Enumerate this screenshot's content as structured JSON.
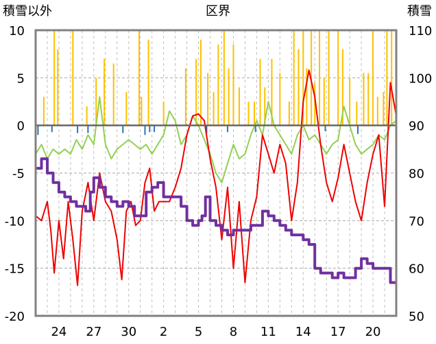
{
  "chart_data": {
    "type": "line",
    "title": "区界",
    "left_axis_label": "積雪以外",
    "right_axis_label": "積雪",
    "ylim_left": [
      -20,
      10
    ],
    "ylim_right": [
      50,
      110
    ],
    "y_ticks_left": [
      "10",
      "5",
      "0",
      "-5",
      "-10",
      "-15",
      "-20"
    ],
    "y_ticks_right": [
      "110",
      "100",
      "90",
      "80",
      "70",
      "60",
      "50"
    ],
    "x_range": [
      22,
      53
    ],
    "x_ticks": [
      {
        "x": 24,
        "label": "24"
      },
      {
        "x": 27,
        "label": "27"
      },
      {
        "x": 30,
        "label": "30"
      },
      {
        "x": 33,
        "label": "2"
      },
      {
        "x": 36,
        "label": "5"
      },
      {
        "x": 39,
        "label": "8"
      },
      {
        "x": 42,
        "label": "11"
      },
      {
        "x": 45,
        "label": "14"
      },
      {
        "x": 48,
        "label": "17"
      },
      {
        "x": 51,
        "label": "20"
      }
    ],
    "grid": {
      "horizontal": "dashed",
      "vertical_daily": "dashed"
    },
    "colors": {
      "temp_max": "#ee0000",
      "temp_min": "#92d050",
      "precipitation": "#ffc000",
      "negative_bar": "#2e75b6",
      "snow_depth": "#7030a0",
      "frame": "#808080",
      "zero_line": "#666666"
    },
    "series": [
      {
        "key": "temp_max",
        "axis": "left",
        "x": [
          22,
          22.5,
          23,
          23.3,
          23.6,
          24,
          24.4,
          24.8,
          25.2,
          25.6,
          26,
          26.5,
          27,
          27.5,
          28,
          28.5,
          29,
          29.4,
          29.8,
          30.2,
          30.6,
          31,
          31.4,
          31.8,
          32.2,
          32.6,
          33,
          33.5,
          34,
          34.5,
          35,
          35.5,
          36,
          36.5,
          37,
          37.5,
          38,
          38.5,
          39,
          39.5,
          40,
          40.5,
          41,
          41.5,
          42,
          42.5,
          43,
          43.5,
          44,
          44.5,
          45,
          45.5,
          46,
          46.5,
          47,
          47.5,
          48,
          48.5,
          49,
          49.5,
          50,
          50.5,
          51,
          51.5,
          52,
          52.5,
          53
        ],
        "y": [
          -9.5,
          -10,
          -8,
          -11,
          -15.5,
          -10,
          -14,
          -8,
          -12,
          -16.8,
          -9,
          -6,
          -10,
          -5,
          -8,
          -9,
          -12,
          -16.2,
          -9,
          -8,
          -10.5,
          -10,
          -6,
          -4.5,
          -9,
          -8,
          -8,
          -8,
          -6.5,
          -4.5,
          -1,
          1,
          1.2,
          0.5,
          -3.5,
          -6.5,
          -12,
          -6.5,
          -15,
          -8,
          -16.5,
          -10,
          -7.5,
          -1,
          -3,
          -5,
          -2,
          -4,
          -10,
          -6,
          2.5,
          5.8,
          3,
          -2,
          -6,
          -8,
          -5.5,
          -2,
          -5,
          -8,
          -10,
          -6,
          -3,
          -1,
          -8.5,
          4.5,
          1
        ],
        "line_width": 2
      },
      {
        "key": "temp_min",
        "axis": "left",
        "x": [
          22,
          22.5,
          23,
          23.5,
          24,
          24.5,
          25,
          25.5,
          26,
          26.5,
          27,
          27.5,
          28,
          28.5,
          29,
          29.5,
          30,
          30.5,
          31,
          31.5,
          32,
          32.5,
          33,
          33.5,
          34,
          34.5,
          35,
          35.5,
          36,
          36.5,
          37,
          37.5,
          38,
          38.5,
          39,
          39.5,
          40,
          40.5,
          41,
          41.5,
          42,
          42.5,
          43,
          43.5,
          44,
          44.5,
          45,
          45.5,
          46,
          46.5,
          47,
          47.5,
          48,
          48.5,
          49,
          49.5,
          50,
          50.5,
          51,
          51.5,
          52,
          52.5,
          53
        ],
        "y": [
          -3,
          -2,
          -3.5,
          -2.5,
          -3,
          -2.5,
          -3,
          -1.5,
          -2.5,
          -1,
          -2,
          3,
          -2,
          -3.5,
          -2.5,
          -2,
          -1.5,
          -2,
          -2.5,
          -2,
          -3,
          -2,
          -1,
          1.5,
          0.5,
          -2,
          -1,
          1,
          0,
          -1.5,
          -3,
          -5,
          -6,
          -4,
          -2,
          -3.5,
          -3,
          -1,
          0.5,
          -1,
          2.5,
          0,
          -1,
          -2,
          -3,
          -1,
          0,
          -1.5,
          -1,
          -2,
          -3,
          -2,
          -1.5,
          2,
          0,
          -2,
          -3,
          -2.5,
          -2,
          -1,
          -1.5,
          0,
          0.5
        ],
        "line_width": 2
      },
      {
        "key": "snow_depth",
        "axis": "right",
        "x": [
          22,
          22.5,
          23,
          23.5,
          24,
          24.5,
          25,
          25.5,
          26,
          26.3,
          26.7,
          27,
          27.5,
          28,
          28.5,
          29,
          29.5,
          30,
          30.5,
          31,
          31.5,
          32,
          32.5,
          33,
          33.5,
          34,
          34.5,
          35,
          35.5,
          36,
          36.3,
          36.6,
          37,
          37.5,
          38,
          38.5,
          39,
          39.5,
          40,
          40.5,
          41,
          41.5,
          42,
          42.5,
          43,
          43.5,
          44,
          44.5,
          45,
          45.5,
          46,
          46.5,
          47,
          47.5,
          48,
          48.5,
          49,
          49.5,
          50,
          50.5,
          51,
          51.5,
          52,
          52.5,
          53
        ],
        "y": [
          81,
          83,
          80,
          78,
          76,
          75,
          74,
          73,
          73,
          72,
          76,
          79,
          77,
          75,
          74,
          73,
          74,
          73,
          71,
          71,
          76,
          77,
          78,
          75,
          75,
          75,
          73,
          70,
          69,
          70,
          71,
          75,
          70,
          69,
          68,
          67,
          68,
          68,
          68,
          69,
          69,
          72,
          71,
          70,
          69,
          68,
          67,
          67,
          66,
          65,
          60,
          59,
          59,
          58,
          59,
          58,
          58,
          60,
          62,
          61,
          60,
          60,
          60,
          57,
          57
        ],
        "line_width": 4
      },
      {
        "key": "precipitation",
        "axis": "left",
        "baseline": 0,
        "bar_width": 0.12,
        "x": [
          22.7,
          23.6,
          23.9,
          25.2,
          26.4,
          27.2,
          27.9,
          28.7,
          29.8,
          30.9,
          31.1,
          31.7,
          33.0,
          34.9,
          35.8,
          36.2,
          36.8,
          37.3,
          37.7,
          38.2,
          38.6,
          39.0,
          39.5,
          40.3,
          40.8,
          41.3,
          41.7,
          42.3,
          43.0,
          43.8,
          44.2,
          44.6,
          45.0,
          45.3,
          45.7,
          46.0,
          46.4,
          46.8,
          47.2,
          48.0,
          48.4,
          49.0,
          49.6,
          50.2,
          50.6,
          51.0,
          51.4,
          51.9,
          52.2,
          52.6
        ],
        "y": [
          3,
          10,
          8,
          10,
          2,
          5,
          7,
          6.5,
          3.5,
          10,
          3,
          9,
          2.5,
          6,
          7,
          9,
          5.5,
          3.5,
          8.5,
          10,
          6,
          8.5,
          4,
          2.5,
          2.5,
          7,
          4,
          7,
          5.5,
          2.5,
          10,
          8,
          10,
          6,
          10,
          4.5,
          10,
          5,
          10,
          10,
          8,
          5,
          2.5,
          5.5,
          5.5,
          10,
          3,
          3.5,
          10,
          10
        ]
      },
      {
        "key": "negative_bars",
        "axis": "left",
        "baseline": 0,
        "bar_width": 0.12,
        "x": [
          22.2,
          23.4,
          25.6,
          26.5,
          29.5,
          31.4,
          31.8,
          32.2,
          36.7,
          38.5,
          40.9,
          46.9,
          49.7
        ],
        "y": [
          -1,
          -0.7,
          -0.8,
          -0.8,
          -0.8,
          -1,
          -0.7,
          -0.7,
          -0.8,
          -0.7,
          -0.7,
          -0.6,
          -0.9
        ]
      }
    ]
  }
}
